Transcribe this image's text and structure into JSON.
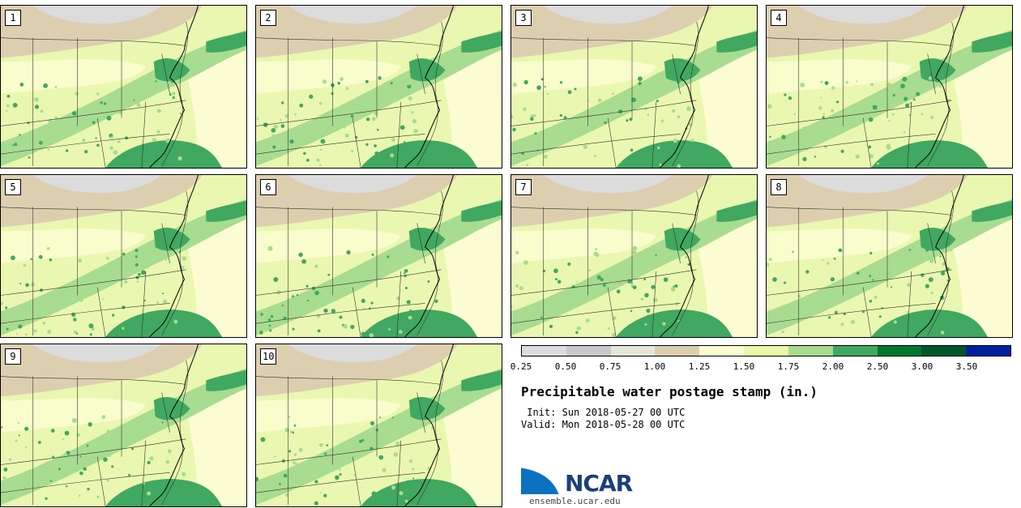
{
  "panels": [
    {
      "id": "panel-1",
      "label": "1"
    },
    {
      "id": "panel-2",
      "label": "2"
    },
    {
      "id": "panel-3",
      "label": "3"
    },
    {
      "id": "panel-4",
      "label": "4"
    },
    {
      "id": "panel-5",
      "label": "5"
    },
    {
      "id": "panel-6",
      "label": "6"
    },
    {
      "id": "panel-7",
      "label": "7"
    },
    {
      "id": "panel-8",
      "label": "8"
    },
    {
      "id": "panel-9",
      "label": "9"
    },
    {
      "id": "panel-10",
      "label": "10"
    }
  ],
  "colorbar": {
    "colors": [
      "#dcdcdc",
      "#c8c8c8",
      "#e6e6d8",
      "#dccfb0",
      "#fcfcd2",
      "#e8f8a8",
      "#a8dc90",
      "#40a860",
      "#007830",
      "#00582a",
      "#0020a0"
    ],
    "tick_labels": [
      "0.25",
      "0.50",
      "0.75",
      "1.00",
      "1.25",
      "1.50",
      "1.75",
      "2.00",
      "2.50",
      "3.00",
      "3.50"
    ]
  },
  "title": "Precipitable water postage stamp (in.)",
  "init": " Init: Sun 2018-05-27 00 UTC",
  "valid": "Valid: Mon 2018-05-28 00 UTC",
  "logo": {
    "text": "NCAR",
    "url": "ensemble.ucar.edu"
  }
}
